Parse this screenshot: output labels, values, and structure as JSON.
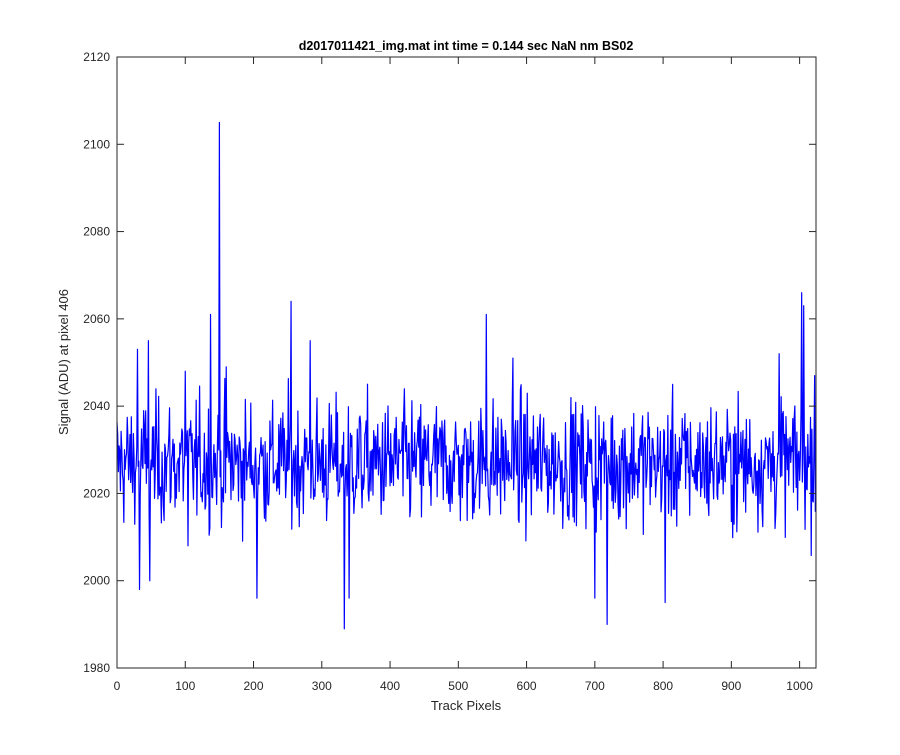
{
  "chart_data": {
    "type": "line",
    "title": "d2017011421_img.mat int time = 0.144 sec  NaN nm BS02",
    "xlabel": "Track Pixels",
    "ylabel": "Signal (ADU) at pixel 406",
    "xlim": [
      0,
      1024
    ],
    "ylim": [
      1980,
      2120
    ],
    "xticks": [
      0,
      100,
      200,
      300,
      400,
      500,
      600,
      700,
      800,
      900,
      1000
    ],
    "yticks": [
      1980,
      2000,
      2020,
      2040,
      2060,
      2080,
      2100,
      2120
    ],
    "grid": false,
    "box": true,
    "series": [
      {
        "color": "#0000ff",
        "x_start": 0,
        "x_step": 1,
        "y_min": 1989,
        "y_max": 2105,
        "mean": 2027,
        "noise_std": 7,
        "peaks": [
          {
            "x": 30,
            "y": 2053
          },
          {
            "x": 33,
            "y": 1998
          },
          {
            "x": 46,
            "y": 2055
          },
          {
            "x": 48,
            "y": 2000
          },
          {
            "x": 100,
            "y": 2048
          },
          {
            "x": 104,
            "y": 2008
          },
          {
            "x": 137,
            "y": 2061
          },
          {
            "x": 150,
            "y": 2105
          },
          {
            "x": 160,
            "y": 2049
          },
          {
            "x": 205,
            "y": 1996
          },
          {
            "x": 255,
            "y": 2064
          },
          {
            "x": 283,
            "y": 2055
          },
          {
            "x": 333,
            "y": 1989
          },
          {
            "x": 340,
            "y": 1996
          },
          {
            "x": 541,
            "y": 2061
          },
          {
            "x": 580,
            "y": 2051
          },
          {
            "x": 700,
            "y": 1996
          },
          {
            "x": 718,
            "y": 1990
          },
          {
            "x": 803,
            "y": 1995
          },
          {
            "x": 970,
            "y": 2052
          },
          {
            "x": 1003,
            "y": 2066
          },
          {
            "x": 1006,
            "y": 2063
          },
          {
            "x": 1022,
            "y": 2047
          }
        ]
      }
    ]
  }
}
